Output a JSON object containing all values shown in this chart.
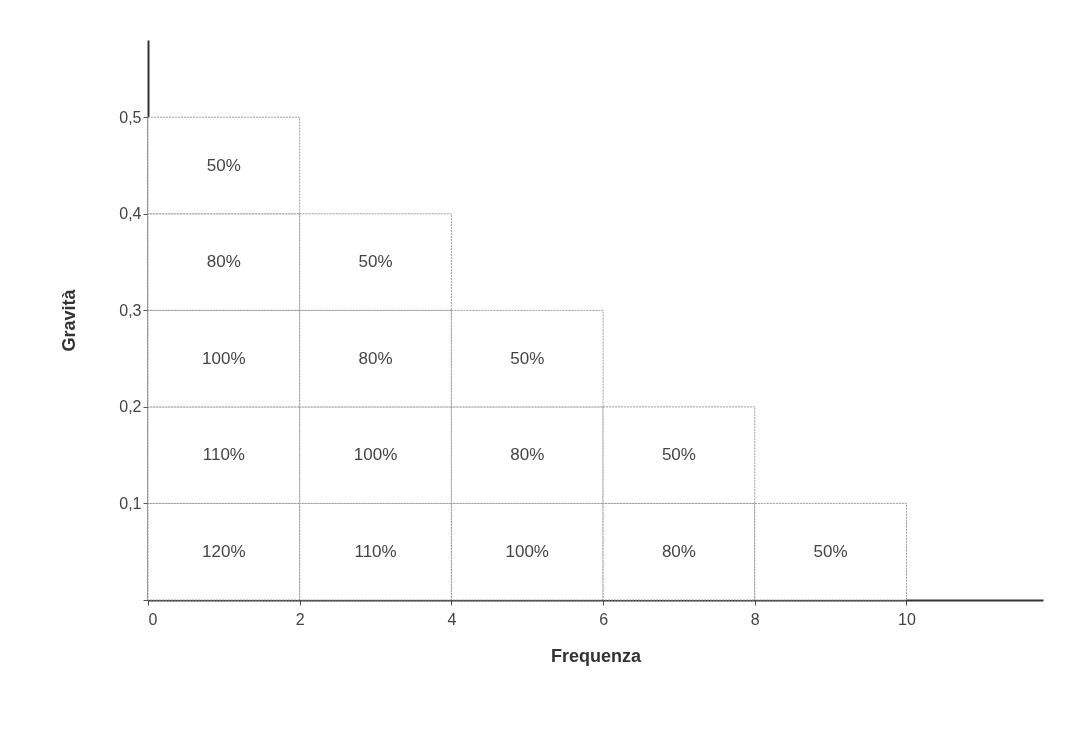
{
  "chart_data": {
    "type": "bar",
    "stacked": true,
    "xlabel": "Frequenza",
    "ylabel": "Gravità",
    "x": [
      1,
      3,
      5,
      7,
      9
    ],
    "series": [
      {
        "color": "#ffffff",
        "values": [
          0.1,
          0.1,
          0.1,
          0.1,
          0.1
        ]
      },
      {
        "color": "#ffffff",
        "values": [
          0.1,
          0.1,
          0.1,
          0.1,
          null
        ]
      },
      {
        "color": "#ffffff",
        "values": [
          0.1,
          0.1,
          0.1,
          null,
          null
        ]
      },
      {
        "color": "#ffffff",
        "values": [
          0.1,
          0.1,
          null,
          null,
          null
        ]
      },
      {
        "color": "#ffffff",
        "values": [
          0.1,
          null,
          null,
          null,
          null
        ]
      }
    ],
    "annotations": [
      {
        "text": "50%",
        "x": 1,
        "y": 0.5
      },
      {
        "text": "80%",
        "x": 1,
        "y": 0.4
      },
      {
        "text": "50%",
        "x": 3,
        "y": 0.4
      },
      {
        "text": "100%",
        "x": 1,
        "y": 0.3
      },
      {
        "text": "80%",
        "x": 3,
        "y": 0.3
      },
      {
        "text": "50%",
        "x": 5,
        "y": 0.3
      },
      {
        "text": "110%",
        "x": 1,
        "y": 0.2
      },
      {
        "text": "100%",
        "x": 3,
        "y": 0.2
      },
      {
        "text": "80%",
        "x": 5,
        "y": 0.2
      },
      {
        "text": "50%",
        "x": 7,
        "y": 0.2
      },
      {
        "text": "120%",
        "x": 1,
        "y": 0.1
      },
      {
        "text": "110%",
        "x": 3,
        "y": 0.1
      },
      {
        "text": "100%",
        "x": 5,
        "y": 0.1
      },
      {
        "text": "80%",
        "x": 7,
        "y": 0.1
      },
      {
        "text": "50%",
        "x": 9,
        "y": 0.1
      }
    ],
    "xlim": [
      0,
      11.8
    ],
    "ylim": [
      0,
      0.58
    ],
    "xticks": [
      0,
      2,
      4,
      6,
      8,
      10
    ],
    "yticks": [
      {
        "value": 0,
        "label": null
      },
      {
        "value": 0.1,
        "label": "0,1"
      },
      {
        "value": 0.2,
        "label": "0,2"
      },
      {
        "value": 0.3,
        "label": "0,3"
      },
      {
        "value": 0.4,
        "label": "0,4"
      },
      {
        "value": 0.5,
        "label": "0,5"
      }
    ],
    "grid": false
  }
}
